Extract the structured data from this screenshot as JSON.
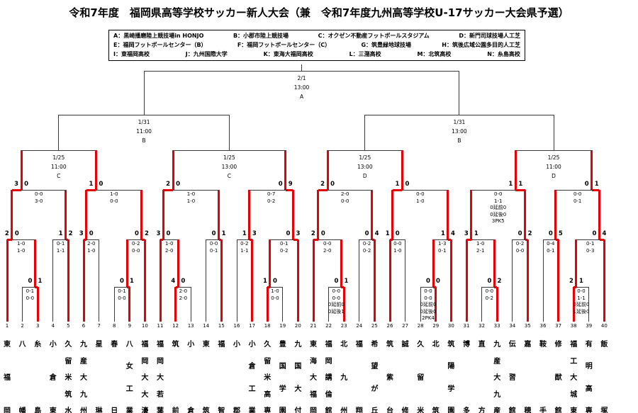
{
  "title": "令和7年度　福岡県高等学校サッカー新人大会（兼　令和7年度九州高等学校U-17サッカー大会県予選）",
  "venue_legend": {
    "rows": [
      [
        "A：黒崎播磨陸上競技場in HONJO",
        "B：小郡市陸上競技場",
        "C：オクゼン不動産フットボールスタジアム",
        "D：新門司球技場人工芝"
      ],
      [
        "E：福岡フットボールセンター（B）",
        "F：福岡フットボールセンター（C）",
        "G：筑豊緑地球技場",
        "H：筑後広域公園多目的人工芝"
      ],
      [
        "I：東福岡高校",
        "J：九州国際大学",
        "K：東海大福岡高校",
        "L：三潴高校",
        "M：北筑高校",
        "N：糸島高校"
      ]
    ]
  },
  "teams": [
    {
      "no": 1,
      "name": "東福岡"
    },
    {
      "no": 2,
      "name": "八幡"
    },
    {
      "no": 3,
      "name": "糸島"
    },
    {
      "no": 4,
      "name": "小倉東"
    },
    {
      "no": 5,
      "name": "久留米筑水"
    },
    {
      "no": 6,
      "name": "九産大九州"
    },
    {
      "no": 7,
      "name": "星琳"
    },
    {
      "no": 8,
      "name": "春日"
    },
    {
      "no": 9,
      "name": "八女工業"
    },
    {
      "no": 10,
      "name": "福岡大大濠"
    },
    {
      "no": 11,
      "name": "福岡大若葉"
    },
    {
      "no": 12,
      "name": "筑前"
    },
    {
      "no": 13,
      "name": "小倉"
    },
    {
      "no": 14,
      "name": "東筑"
    },
    {
      "no": 15,
      "name": "福智"
    },
    {
      "no": 16,
      "name": "小郡"
    },
    {
      "no": 17,
      "name": "小倉工業"
    },
    {
      "no": 18,
      "name": "久留米高専"
    },
    {
      "no": 19,
      "name": "豊国学園"
    },
    {
      "no": 20,
      "name": "九国大付"
    },
    {
      "no": 21,
      "name": "東海大福岡"
    },
    {
      "no": 22,
      "name": "福岡講倫館"
    },
    {
      "no": 23,
      "name": "北九州"
    },
    {
      "no": 24,
      "name": "福翔"
    },
    {
      "no": 25,
      "name": "希望が丘"
    },
    {
      "no": 26,
      "name": "筑紫台"
    },
    {
      "no": 27,
      "name": "誠修"
    },
    {
      "no": 28,
      "name": "久留米"
    },
    {
      "no": 29,
      "name": "北筑"
    },
    {
      "no": 30,
      "name": "筑陽学園"
    },
    {
      "no": 31,
      "name": "博多"
    },
    {
      "no": 32,
      "name": "直方"
    },
    {
      "no": 33,
      "name": "九産大九産"
    },
    {
      "no": 34,
      "name": "伝習館"
    },
    {
      "no": 35,
      "name": "嘉穂"
    },
    {
      "no": 36,
      "name": "鞍手"
    },
    {
      "no": 37,
      "name": "修猷館"
    },
    {
      "no": 38,
      "name": "福工大城東"
    },
    {
      "no": 39,
      "name": "有明高専"
    },
    {
      "no": 40,
      "name": "飯塚"
    }
  ],
  "rounds": {
    "first": [
      {
        "id": "f1",
        "slots": [
          "t2",
          "t3"
        ],
        "score": [
          0,
          1
        ],
        "details": [
          "0-1",
          "0-0"
        ],
        "winner": "R"
      },
      {
        "id": "f2",
        "slots": [
          "t8",
          "t9"
        ],
        "score": [
          0,
          1
        ],
        "details": [
          "0-1",
          "0-0"
        ],
        "winner": "R"
      },
      {
        "id": "f3",
        "slots": [
          "t12",
          "t13"
        ],
        "score": [
          4,
          0
        ],
        "details": [
          "2-0",
          "2-0"
        ],
        "winner": "L"
      },
      {
        "id": "f4",
        "slots": [
          "t18",
          "t19"
        ],
        "score": [
          1,
          0
        ],
        "details": [
          "1-0",
          "0-0"
        ],
        "winner": "L"
      },
      {
        "id": "f5",
        "slots": [
          "t22",
          "t23"
        ],
        "score": [
          0,
          1
        ],
        "details": [
          "0-0",
          "0-0",
          "0延前0",
          "0延後1"
        ],
        "winner": "R"
      },
      {
        "id": "f6",
        "slots": [
          "t28",
          "t29"
        ],
        "score": [
          0,
          0
        ],
        "details": [
          "0-0",
          "0-0",
          "0延前0",
          "0延後0",
          "2PK4"
        ],
        "winner": "R"
      },
      {
        "id": "f7",
        "slots": [
          "t32",
          "t33"
        ],
        "score": [
          0,
          2
        ],
        "details": [
          "0-0",
          "0-2"
        ],
        "winner": "R"
      },
      {
        "id": "f8",
        "slots": [
          "t38",
          "t39"
        ],
        "score": [
          2,
          1
        ],
        "details": [
          "0-0",
          "1-1",
          "0延前0",
          "1延後0"
        ],
        "winner": "L"
      }
    ],
    "r32": [
      {
        "id": "r1",
        "slots": [
          "t1",
          "f1"
        ],
        "score": [
          2,
          0
        ],
        "details": [
          "1-0",
          "1-0"
        ],
        "winner": "L"
      },
      {
        "id": "r2",
        "slots": [
          "t4",
          "t5"
        ],
        "score": [
          1,
          2
        ],
        "details": [
          "0-1",
          "1-1"
        ],
        "winner": "R"
      },
      {
        "id": "r3",
        "slots": [
          "t6",
          "t7"
        ],
        "score": [
          3,
          0
        ],
        "details": [
          "2-0",
          "1-0"
        ],
        "winner": "L"
      },
      {
        "id": "r4",
        "slots": [
          "f2",
          "t10"
        ],
        "score": [
          0,
          2
        ],
        "details": [
          "0-2",
          "0-0"
        ],
        "winner": "R"
      },
      {
        "id": "r5",
        "slots": [
          "t11",
          "f3"
        ],
        "score": [
          3,
          0
        ],
        "details": [
          "1-0",
          "2-0"
        ],
        "winner": "L"
      },
      {
        "id": "r6",
        "slots": [
          "t14",
          "t15"
        ],
        "score": [
          0,
          1
        ],
        "details": [
          "0-0",
          "0-1"
        ],
        "winner": "R"
      },
      {
        "id": "r7",
        "slots": [
          "t16",
          "t17"
        ],
        "score": [
          1,
          3
        ],
        "details": [
          "0-2",
          "1-1"
        ],
        "winner": "R"
      },
      {
        "id": "r8",
        "slots": [
          "f4",
          "t20"
        ],
        "score": [
          0,
          3
        ],
        "details": [
          "0-1",
          "0-2"
        ],
        "winner": "R"
      },
      {
        "id": "r9",
        "slots": [
          "t21",
          "f5"
        ],
        "score": [
          2,
          0
        ],
        "details": [
          "0-0",
          "2-0"
        ],
        "winner": "L"
      },
      {
        "id": "r10",
        "slots": [
          "t24",
          "t25"
        ],
        "score": [
          0,
          4
        ],
        "details": [
          "0-2",
          "0-2"
        ],
        "winner": "R"
      },
      {
        "id": "r11",
        "slots": [
          "t26",
          "t27"
        ],
        "score": [
          1,
          0
        ],
        "details": [
          "0-0",
          "1-0"
        ],
        "winner": "L"
      },
      {
        "id": "r12",
        "slots": [
          "f6",
          "t30"
        ],
        "score": [
          1,
          4
        ],
        "details": [
          "1-3",
          "0-1"
        ],
        "winner": "R"
      },
      {
        "id": "r13",
        "slots": [
          "t31",
          "f7"
        ],
        "score": [
          3,
          1
        ],
        "details": [
          "1-0",
          "2-1"
        ],
        "winner": "L"
      },
      {
        "id": "r14",
        "slots": [
          "t34",
          "t35"
        ],
        "score": [
          0,
          2
        ],
        "details": [
          "0-2",
          "0-0"
        ],
        "winner": "R"
      },
      {
        "id": "r15",
        "slots": [
          "t36",
          "t37"
        ],
        "score": [
          0,
          5
        ],
        "details": [
          "0-4",
          "0-1"
        ],
        "winner": "R"
      },
      {
        "id": "r16m",
        "slots": [
          "f8",
          "t40"
        ],
        "score": [
          0,
          4
        ],
        "details": [
          "0-1",
          "0-3"
        ],
        "winner": "R"
      }
    ],
    "r16": [
      {
        "id": "s1",
        "slots": [
          "r1",
          "r2"
        ],
        "score": [
          3,
          0
        ],
        "details": [
          "0-0",
          "3-0"
        ],
        "winner": "L"
      },
      {
        "id": "s2",
        "slots": [
          "r3",
          "r4"
        ],
        "score": [
          1,
          0
        ],
        "details": [
          "1-0",
          "0-0"
        ],
        "winner": "L"
      },
      {
        "id": "s3",
        "slots": [
          "r5",
          "r6"
        ],
        "score": [
          2,
          0
        ],
        "details": [
          "1-0",
          "1-0"
        ],
        "winner": "L"
      },
      {
        "id": "s4",
        "slots": [
          "r7",
          "r8"
        ],
        "score": [
          0,
          9
        ],
        "details": [
          "0-7",
          "0-2"
        ],
        "winner": "R"
      },
      {
        "id": "s5",
        "slots": [
          "r9",
          "r10"
        ],
        "score": [
          2,
          0
        ],
        "details": [
          "2-0",
          "0-0"
        ],
        "winner": "L"
      },
      {
        "id": "s6",
        "slots": [
          "r11",
          "r12"
        ],
        "score": [
          1,
          0
        ],
        "details": [
          "0-0",
          "1-0"
        ],
        "winner": "L"
      },
      {
        "id": "s7",
        "slots": [
          "r13",
          "r14"
        ],
        "score": [
          1,
          1
        ],
        "details": [
          "0-0",
          "1-1",
          "0延前0",
          "0延後0",
          "3PK5"
        ],
        "winner": "R"
      },
      {
        "id": "s8",
        "slots": [
          "r15",
          "r16m"
        ],
        "score": [
          0,
          1
        ],
        "details": [
          "0-0",
          "0-1"
        ],
        "winner": "R"
      }
    ],
    "qf": [
      {
        "id": "q1",
        "slots": [
          "s1",
          "s2"
        ],
        "date": "1/25",
        "time": "11:00",
        "venue": "C"
      },
      {
        "id": "q2",
        "slots": [
          "s3",
          "s4"
        ],
        "date": "1/25",
        "time": "13:00",
        "venue": "C"
      },
      {
        "id": "q3",
        "slots": [
          "s5",
          "s6"
        ],
        "date": "1/25",
        "time": "13:00",
        "venue": "D"
      },
      {
        "id": "q4",
        "slots": [
          "s7",
          "s8"
        ],
        "date": "1/25",
        "time": "11:00",
        "venue": "D"
      }
    ],
    "sf": [
      {
        "id": "h1",
        "slots": [
          "q1",
          "q2"
        ],
        "date": "1/31",
        "time": "11:00",
        "venue": "B"
      },
      {
        "id": "h2",
        "slots": [
          "q3",
          "q4"
        ],
        "date": "1/31",
        "time": "13:00",
        "venue": "B"
      }
    ],
    "final": {
      "id": "fin",
      "slots": [
        "h1",
        "h2"
      ],
      "date": "2/1",
      "time": "13:00",
      "venue": "A"
    }
  },
  "colors": {
    "winner_path": "#e60005",
    "line": "#3a3a3a"
  }
}
